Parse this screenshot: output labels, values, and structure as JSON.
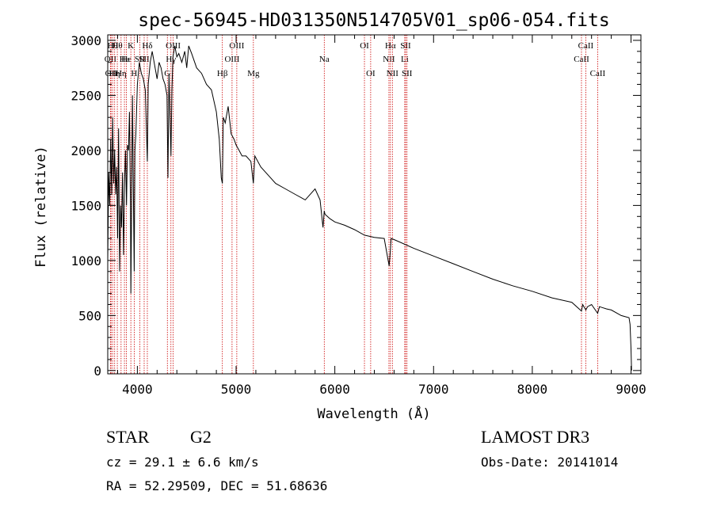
{
  "chart_data": {
    "type": "line",
    "title": "spec-56945-HD031350N514705V01_sp06-054.fits",
    "xlabel": "Wavelength (Å)",
    "ylabel": "Flux (relative)",
    "xlim": [
      3700,
      9100
    ],
    "ylim": [
      -30,
      3050
    ],
    "xticks": [
      4000,
      5000,
      6000,
      7000,
      8000,
      9000
    ],
    "yticks": [
      0,
      500,
      1000,
      1500,
      2000,
      2500,
      3000
    ],
    "series": [
      {
        "name": "flux",
        "x": [
          3700,
          3710,
          3720,
          3730,
          3740,
          3750,
          3760,
          3770,
          3780,
          3790,
          3800,
          3810,
          3820,
          3830,
          3840,
          3850,
          3860,
          3870,
          3880,
          3890,
          3900,
          3910,
          3920,
          3930,
          3934,
          3940,
          3950,
          3960,
          3968,
          3975,
          3985,
          4000,
          4020,
          4040,
          4060,
          4080,
          4101,
          4110,
          4130,
          4150,
          4180,
          4200,
          4220,
          4240,
          4260,
          4280,
          4300,
          4310,
          4320,
          4340,
          4350,
          4360,
          4380,
          4400,
          4420,
          4450,
          4480,
          4500,
          4520,
          4550,
          4600,
          4650,
          4700,
          4750,
          4800,
          4830,
          4850,
          4861,
          4870,
          4890,
          4920,
          4950,
          4980,
          5000,
          5030,
          5060,
          5100,
          5150,
          5175,
          5190,
          5250,
          5300,
          5400,
          5500,
          5600,
          5700,
          5800,
          5850,
          5880,
          5893,
          5900,
          5950,
          6000,
          6100,
          6200,
          6300,
          6400,
          6500,
          6550,
          6563,
          6570,
          6600,
          6700,
          6800,
          7000,
          7200,
          7400,
          7600,
          7800,
          8000,
          8200,
          8400,
          8498,
          8510,
          8542,
          8560,
          8600,
          8662,
          8680,
          8750,
          8800,
          8900,
          8980,
          8990,
          9000,
          9005
        ],
        "values": [
          1000,
          1800,
          1500,
          2100,
          1600,
          2300,
          1700,
          2000,
          1600,
          1850,
          1200,
          2200,
          900,
          1500,
          1300,
          1800,
          1050,
          1700,
          2000,
          1500,
          2050,
          2000,
          2350,
          1500,
          700,
          1300,
          2500,
          1600,
          900,
          2000,
          2150,
          2600,
          2800,
          2700,
          2650,
          2550,
          1900,
          2600,
          2800,
          2900,
          2750,
          2650,
          2800,
          2750,
          2650,
          2600,
          2500,
          1750,
          2700,
          1950,
          2550,
          2850,
          2950,
          2850,
          2880,
          2800,
          2900,
          2750,
          2950,
          2880,
          2750,
          2700,
          2600,
          2550,
          2350,
          2100,
          1750,
          1700,
          2300,
          2250,
          2400,
          2150,
          2100,
          2050,
          2000,
          1950,
          1950,
          1900,
          1700,
          1950,
          1850,
          1800,
          1700,
          1650,
          1600,
          1550,
          1650,
          1550,
          1300,
          1450,
          1420,
          1380,
          1350,
          1320,
          1280,
          1230,
          1210,
          1200,
          950,
          1100,
          1200,
          1190,
          1150,
          1110,
          1040,
          970,
          900,
          830,
          770,
          720,
          660,
          620,
          540,
          600,
          550,
          580,
          600,
          520,
          580,
          560,
          550,
          500,
          480,
          420,
          200,
          0
        ]
      }
    ],
    "line_markers": [
      {
        "wavelength": 3727,
        "label": "OII",
        "row": 1
      },
      {
        "wavelength": 3734,
        "label": "OII",
        "row": 2
      },
      {
        "wavelength": 3750,
        "label": "Hθ",
        "row": 0
      },
      {
        "wavelength": 3770,
        "label": "Hη",
        "row": 2
      },
      {
        "wavelength": 3797,
        "label": "Hθ",
        "row": 0
      },
      {
        "wavelength": 3835,
        "label": "Hη",
        "row": 2
      },
      {
        "wavelength": 3869,
        "label": "He",
        "row": 1
      },
      {
        "wavelength": 3889,
        "label": "He",
        "row": 1
      },
      {
        "wavelength": 3934,
        "label": "K",
        "row": 0
      },
      {
        "wavelength": 3968,
        "label": "H",
        "row": 2
      },
      {
        "wavelength": 4026,
        "label": "SII",
        "row": 1
      },
      {
        "wavelength": 4069,
        "label": "SII",
        "row": 1
      },
      {
        "wavelength": 4101,
        "label": "Hδ",
        "row": 0
      },
      {
        "wavelength": 4304,
        "label": "G",
        "row": 2
      },
      {
        "wavelength": 4340,
        "label": "Hγ",
        "row": 1
      },
      {
        "wavelength": 4363,
        "label": "OIII",
        "row": 0
      },
      {
        "wavelength": 4861,
        "label": "Hβ",
        "row": 2
      },
      {
        "wavelength": 4959,
        "label": "OIII",
        "row": 1
      },
      {
        "wavelength": 5007,
        "label": "OIII",
        "row": 0
      },
      {
        "wavelength": 5175,
        "label": "Mg",
        "row": 2
      },
      {
        "wavelength": 5893,
        "label": "Na",
        "row": 1
      },
      {
        "wavelength": 6300,
        "label": "OI",
        "row": 0
      },
      {
        "wavelength": 6363,
        "label": "OI",
        "row": 2
      },
      {
        "wavelength": 6548,
        "label": "NII",
        "row": 1
      },
      {
        "wavelength": 6563,
        "label": "Hα",
        "row": 0
      },
      {
        "wavelength": 6583,
        "label": "NII",
        "row": 2
      },
      {
        "wavelength": 6708,
        "label": "Li",
        "row": 1
      },
      {
        "wavelength": 6717,
        "label": "SII",
        "row": 0
      },
      {
        "wavelength": 6731,
        "label": "SII",
        "row": 2
      },
      {
        "wavelength": 8498,
        "label": "CaII",
        "row": 1
      },
      {
        "wavelength": 8542,
        "label": "CaII",
        "row": 0
      },
      {
        "wavelength": 8662,
        "label": "CaII",
        "row": 2
      }
    ]
  },
  "footer": {
    "object_type": "STAR",
    "subclass": "G2",
    "survey": "LAMOST DR3",
    "redshift": "cz = 29.1 ± 6.6 km/s",
    "obs_date": "Obs-Date: 20141014",
    "coordinates": "RA =  52.29509, DEC =  51.68636"
  }
}
